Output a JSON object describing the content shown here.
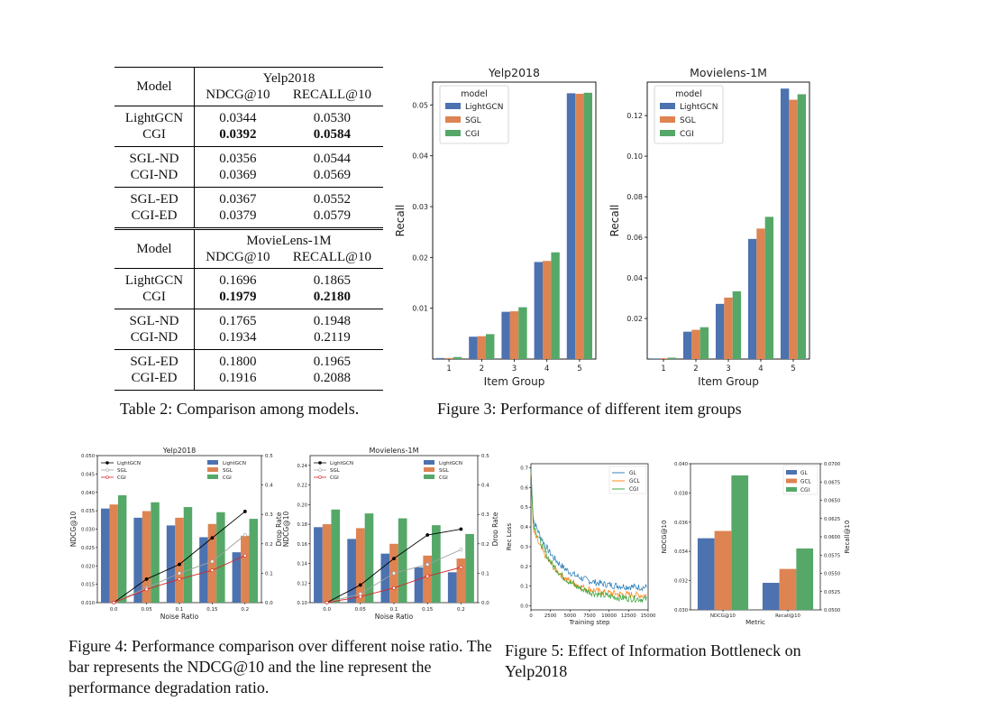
{
  "table": {
    "sections": [
      {
        "dataset": "Yelp2018",
        "model_header": "Model",
        "metric_headers": [
          "NDCG@10",
          "RECALL@10"
        ],
        "groups": [
          [
            {
              "model": "LightGCN",
              "ndcg": "0.0344",
              "recall": "0.0530",
              "bold": false
            },
            {
              "model": "CGI",
              "ndcg": "0.0392",
              "recall": "0.0584",
              "bold": true
            }
          ],
          [
            {
              "model": "SGL-ND",
              "ndcg": "0.0356",
              "recall": "0.0544",
              "bold": false
            },
            {
              "model": "CGI-ND",
              "ndcg": "0.0369",
              "recall": "0.0569",
              "bold": false
            }
          ],
          [
            {
              "model": "SGL-ED",
              "ndcg": "0.0367",
              "recall": "0.0552",
              "bold": false
            },
            {
              "model": "CGI-ED",
              "ndcg": "0.0379",
              "recall": "0.0579",
              "bold": false
            }
          ]
        ]
      },
      {
        "dataset": "MovieLens-1M",
        "model_header": "Model",
        "metric_headers": [
          "NDCG@10",
          "RECALL@10"
        ],
        "groups": [
          [
            {
              "model": "LightGCN",
              "ndcg": "0.1696",
              "recall": "0.1865",
              "bold": false
            },
            {
              "model": "CGI",
              "ndcg": "0.1979",
              "recall": "0.2180",
              "bold": true
            }
          ],
          [
            {
              "model": "SGL-ND",
              "ndcg": "0.1765",
              "recall": "0.1948",
              "bold": false
            },
            {
              "model": "CGI-ND",
              "ndcg": "0.1934",
              "recall": "0.2119",
              "bold": false
            }
          ],
          [
            {
              "model": "SGL-ED",
              "ndcg": "0.1800",
              "recall": "0.1965",
              "bold": false
            },
            {
              "model": "CGI-ED",
              "ndcg": "0.1916",
              "recall": "0.2088",
              "bold": false
            }
          ]
        ]
      }
    ]
  },
  "captions": {
    "table2": "Table 2: Comparison among models.",
    "fig3": "Figure 3: Performance of different item groups",
    "fig4": "Figure 4: Performance comparison over different noise ratio. The bar represents the NDCG@10 and the line represent the performance degradation ratio.",
    "fig5": "Figure 5: Effect of Information Bottleneck on Yelp2018"
  },
  "colors": {
    "lightgcn": "#4c72b0",
    "sgl": "#dd8452",
    "cgi": "#55a868",
    "gl": "#1f77b4",
    "gcl": "#ff7f0e",
    "cgi_line": "#2ca02c"
  },
  "chart_data": [
    {
      "id": "fig3a",
      "type": "bar",
      "title": "Yelp2018",
      "xlabel": "Item Group",
      "ylabel": "Recall",
      "legend_title": "model",
      "legend_position": "top-left",
      "categories": [
        "1",
        "2",
        "3",
        "4",
        "5"
      ],
      "ylim": [
        0,
        0.0545
      ],
      "yticks": [
        0.01,
        0.02,
        0.03,
        0.04,
        0.05
      ],
      "series": [
        {
          "name": "LightGCN",
          "values": [
            0.0002,
            0.0044,
            0.0093,
            0.0191,
            0.0523
          ]
        },
        {
          "name": "SGL",
          "values": [
            0.0002,
            0.0045,
            0.0094,
            0.0193,
            0.0522
          ]
        },
        {
          "name": "CGI",
          "values": [
            0.0004,
            0.0049,
            0.0102,
            0.021,
            0.0524
          ]
        }
      ]
    },
    {
      "id": "fig3b",
      "type": "bar",
      "title": "Movielens-1M",
      "xlabel": "Item Group",
      "ylabel": "Recall",
      "legend_title": "model",
      "legend_position": "top-left",
      "categories": [
        "1",
        "2",
        "3",
        "4",
        "5"
      ],
      "ylim": [
        0,
        0.1365
      ],
      "yticks": [
        0.02,
        0.04,
        0.06,
        0.08,
        0.1,
        0.12
      ],
      "series": [
        {
          "name": "LightGCN",
          "values": [
            0.0003,
            0.0135,
            0.0272,
            0.0592,
            0.1333
          ]
        },
        {
          "name": "SGL",
          "values": [
            0.0004,
            0.0144,
            0.0303,
            0.0643,
            0.1278
          ]
        },
        {
          "name": "CGI",
          "values": [
            0.0007,
            0.0157,
            0.0334,
            0.0701,
            0.1305
          ]
        }
      ]
    },
    {
      "id": "fig4a",
      "type": "bar",
      "title": "Yelp2018",
      "xlabel": "Noise Ratio",
      "ylabel": "NDCG@10",
      "y2label": "Drop Rate",
      "categories": [
        "0.0",
        "0.05",
        "0.1",
        "0.15",
        "0.2"
      ],
      "ylim": [
        0.01,
        0.05
      ],
      "yticks": [
        0.01,
        0.015,
        0.02,
        0.025,
        0.03,
        0.035,
        0.04,
        0.045,
        0.05
      ],
      "y2lim": [
        0,
        0.5
      ],
      "y2ticks": [
        0.0,
        0.1,
        0.2,
        0.3,
        0.4,
        0.5
      ],
      "series": [
        {
          "name": "LightGCN",
          "values": [
            0.0356,
            0.0331,
            0.031,
            0.0278,
            0.0237
          ]
        },
        {
          "name": "SGL",
          "values": [
            0.0367,
            0.0349,
            0.0331,
            0.0314,
            0.0282
          ]
        },
        {
          "name": "CGI",
          "values": [
            0.0392,
            0.0373,
            0.036,
            0.0346,
            0.0328
          ]
        }
      ],
      "lines": [
        {
          "name": "LightGCN",
          "values": [
            0.0,
            0.08,
            0.13,
            0.22,
            0.31
          ]
        },
        {
          "name": "SGL",
          "values": [
            0.0,
            0.05,
            0.1,
            0.14,
            0.23
          ]
        },
        {
          "name": "CGI",
          "values": [
            0.0,
            0.045,
            0.08,
            0.11,
            0.16
          ]
        }
      ]
    },
    {
      "id": "fig4b",
      "type": "bar",
      "title": "Movielens-1M",
      "xlabel": "Noise Ratio",
      "ylabel": "NDCG@10",
      "y2label": "Drop Rate",
      "categories": [
        "0.0",
        "0.05",
        "0.1",
        "0.15",
        "0.2"
      ],
      "ylim": [
        0.1,
        0.25
      ],
      "yticks": [
        0.1,
        0.12,
        0.14,
        0.16,
        0.18,
        0.2,
        0.22,
        0.24
      ],
      "y2lim": [
        0,
        0.5
      ],
      "y2ticks": [
        0.0,
        0.1,
        0.2,
        0.3,
        0.4,
        0.5
      ],
      "series": [
        {
          "name": "LightGCN",
          "values": [
            0.177,
            0.165,
            0.15,
            0.136,
            0.131
          ]
        },
        {
          "name": "SGL",
          "values": [
            0.18,
            0.176,
            0.16,
            0.148,
            0.145
          ]
        },
        {
          "name": "CGI",
          "values": [
            0.195,
            0.191,
            0.186,
            0.179,
            0.17
          ]
        }
      ],
      "lines": [
        {
          "name": "LightGCN",
          "values": [
            0.0,
            0.06,
            0.15,
            0.23,
            0.25
          ]
        },
        {
          "name": "SGL",
          "values": [
            0.0,
            0.03,
            0.1,
            0.13,
            0.18
          ]
        },
        {
          "name": "CGI",
          "values": [
            0.0,
            0.02,
            0.05,
            0.09,
            0.12
          ]
        }
      ]
    },
    {
      "id": "fig5a",
      "type": "line",
      "xlabel": "Training step",
      "ylabel": "Rec Loss",
      "xlim": [
        0,
        15000
      ],
      "xticks": [
        0,
        2500,
        5000,
        7500,
        10000,
        12500,
        15000
      ],
      "ylim": [
        -0.02,
        0.72
      ],
      "yticks": [
        0.0,
        0.1,
        0.2,
        0.3,
        0.4,
        0.5,
        0.6,
        0.7
      ],
      "legend_position": "top-right",
      "series": [
        {
          "name": "GL",
          "start": 0.69,
          "plateau": 0.44,
          "final": 0.09
        },
        {
          "name": "GCL",
          "start": 0.68,
          "plateau": 0.38,
          "final": 0.05
        },
        {
          "name": "CGI",
          "start": 0.69,
          "plateau": 0.42,
          "final": 0.03
        }
      ]
    },
    {
      "id": "fig5b",
      "type": "bar",
      "xlabel": "Metric",
      "ylabel": "NDCG@10",
      "y2label": "Recall@10",
      "categories": [
        "NDCG@10",
        "Recall@10"
      ],
      "ylim": [
        0.03,
        0.04
      ],
      "yticks": [
        0.03,
        0.032,
        0.034,
        0.036,
        0.038,
        0.04
      ],
      "y2lim": [
        0.05,
        0.07
      ],
      "y2ticks": [
        0.05,
        0.0525,
        0.055,
        0.0575,
        0.06,
        0.0625,
        0.065,
        0.0675,
        0.07
      ],
      "legend_position": "top-right",
      "series": [
        {
          "name": "GL",
          "values": [
            0.0349,
            0.0537
          ]
        },
        {
          "name": "GCL",
          "values": [
            0.0354,
            0.0556
          ]
        },
        {
          "name": "CGI",
          "values": [
            0.0392,
            0.0584
          ]
        }
      ]
    }
  ]
}
